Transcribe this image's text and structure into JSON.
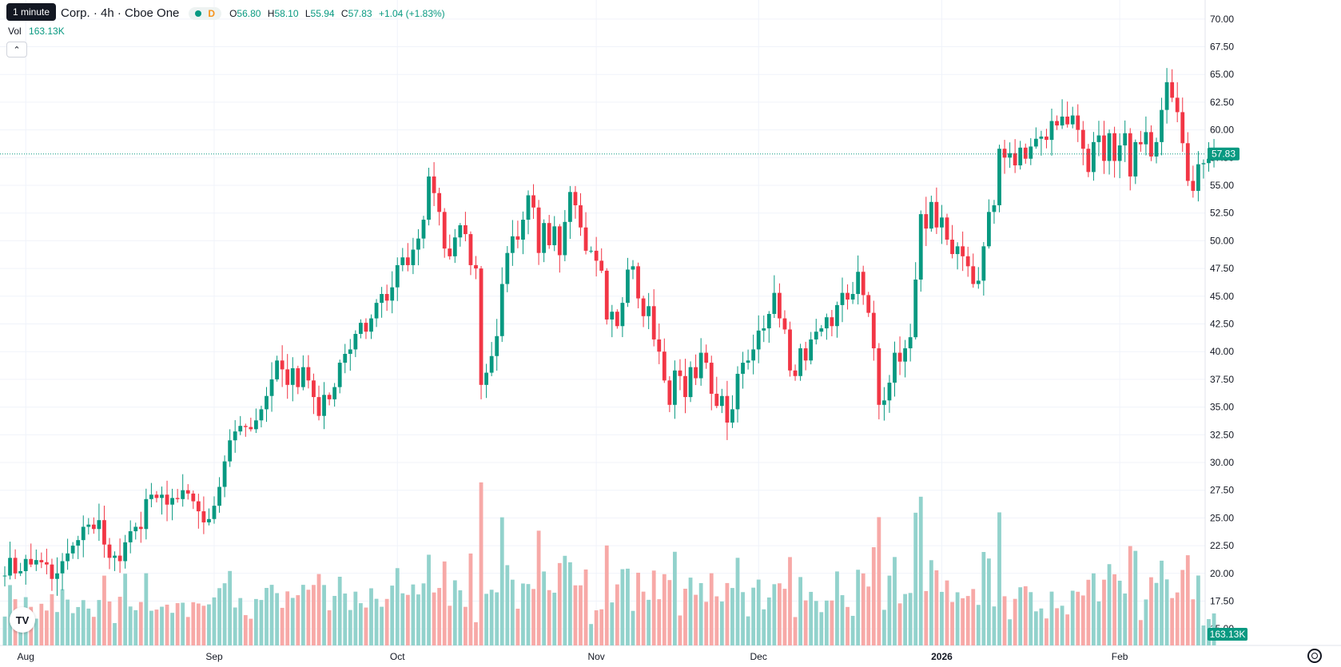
{
  "header": {
    "title": "Corp. · 4h · Cboe One",
    "tooltip": "1 minute",
    "status_letter": "D",
    "ohlc": {
      "o_label": "O",
      "o_value": "56.80",
      "h_label": "H",
      "h_value": "58.10",
      "l_label": "L",
      "l_value": "55.94",
      "c_label": "C",
      "c_value": "57.83",
      "change": "+1.04 (+1.83%)"
    },
    "volume_label": "Vol",
    "volume_value": "163.13K",
    "collapse_icon": "chevron-up-icon"
  },
  "colors": {
    "up": "#089981",
    "down": "#f23645",
    "up_volume": "#92d2cc",
    "down_volume": "#f7a9a7",
    "grid": "#f0f3fa",
    "axis_text": "#131722"
  },
  "price_axis": {
    "ticks": [
      "70.00",
      "67.50",
      "65.00",
      "62.50",
      "60.00",
      "57.50",
      "55.00",
      "52.50",
      "50.00",
      "47.50",
      "45.00",
      "42.50",
      "40.00",
      "37.50",
      "35.00",
      "32.50",
      "30.00",
      "27.50",
      "25.00",
      "22.50",
      "20.00",
      "17.50",
      "15.00"
    ],
    "last_price_label": "57.83",
    "volume_label": "163.13K"
  },
  "time_axis": {
    "labels": [
      "Aug",
      "Sep",
      "Oct",
      "Nov",
      "Dec",
      "2026",
      "Feb"
    ]
  },
  "logo_text": "TV",
  "chart_data": {
    "type": "candlestick",
    "ylim": [
      13.5,
      71.5
    ],
    "last_price": 57.83,
    "time_labels": [
      {
        "label": "Aug",
        "index": 4,
        "bold": false
      },
      {
        "label": "Sep",
        "index": 40,
        "bold": false
      },
      {
        "label": "Oct",
        "index": 75,
        "bold": false
      },
      {
        "label": "Nov",
        "index": 113,
        "bold": false
      },
      {
        "label": "Dec",
        "index": 144,
        "bold": false
      },
      {
        "label": "2026",
        "index": 179,
        "bold": true
      },
      {
        "label": "Feb",
        "index": 213,
        "bold": false
      }
    ],
    "price_path": [
      19.8,
      19.8,
      21.4,
      20.0,
      20.2,
      21.3,
      20.8,
      21.2,
      21.0,
      20.8,
      19.5,
      20.0,
      21.1,
      21.8,
      22.5,
      23.0,
      24.2,
      24.4,
      24.0,
      24.8,
      22.6,
      21.4,
      21.6,
      21.1,
      22.8,
      23.8,
      24.2,
      24.0,
      26.7,
      27.1,
      26.8,
      27.1,
      26.2,
      26.8,
      26.7,
      27.5,
      27.2,
      26.5,
      25.6,
      24.6,
      24.9,
      26.1,
      27.8,
      30.1,
      32.0,
      32.8,
      33.3,
      33.2,
      33.0,
      33.8,
      34.8,
      36.0,
      37.5,
      39.2,
      38.4,
      37.0,
      38.5,
      36.8,
      38.6,
      37.4,
      35.9,
      34.2,
      36.1,
      35.7,
      36.8,
      39.0,
      39.8,
      40.2,
      41.6,
      42.6,
      41.8,
      43.0,
      44.4,
      45.2,
      44.6,
      45.8,
      47.8,
      48.5,
      47.8,
      49.2,
      50.2,
      51.9,
      55.8,
      54.3,
      52.6,
      49.3,
      48.6,
      50.3,
      51.4,
      50.6,
      47.8,
      47.5,
      37.0,
      38.1,
      39.6,
      41.4,
      46.1,
      48.9,
      50.4,
      50.1,
      51.9,
      54.1,
      53.0,
      48.9,
      51.6,
      49.6,
      51.3,
      48.7,
      51.7,
      54.4,
      53.2,
      51.2,
      49.1,
      49.1,
      48.2,
      47.3,
      42.9,
      43.6,
      42.3,
      44.4,
      47.4,
      47.7,
      44.8,
      43.2,
      44.1,
      41.1,
      40.0,
      37.4,
      35.2,
      38.3,
      37.8,
      35.9,
      38.6,
      37.6,
      39.9,
      39.0,
      36.2,
      35.1,
      36.0,
      33.6,
      34.8,
      38.0,
      39.0,
      39.2,
      40.2,
      41.9,
      42.1,
      43.4,
      45.3,
      43.0,
      42.0,
      38.3,
      37.8,
      40.3,
      39.2,
      41.1,
      41.8,
      42.1,
      43.1,
      42.3,
      44.2,
      45.3,
      44.7,
      45.2,
      47.2,
      45.1,
      43.5,
      40.3,
      35.2,
      35.6,
      37.2,
      39.9,
      39.1,
      40.3,
      41.3,
      46.5,
      52.4,
      51.1,
      53.5,
      51.2,
      52.1,
      50.1,
      48.8,
      49.5,
      48.6,
      47.7,
      46.1,
      46.4,
      49.5,
      52.6,
      53.2,
      58.3,
      57.5,
      57.9,
      56.8,
      58.4,
      57.4,
      58.5,
      59.2,
      59.4,
      59.1,
      60.8,
      60.4,
      61.2,
      60.5,
      61.3,
      60.0,
      58.3,
      56.2,
      58.9,
      59.5,
      57.2,
      59.7,
      57.2,
      58.6,
      59.7,
      55.8,
      58.9,
      58.7,
      59.8,
      57.6,
      58.9,
      61.8,
      64.3,
      62.9,
      61.6,
      58.8,
      55.4,
      54.5,
      56.9,
      57.0,
      57.4,
      57.83
    ],
    "volume_range": [
      0,
      30
    ],
    "last_volume": 163.13
  }
}
